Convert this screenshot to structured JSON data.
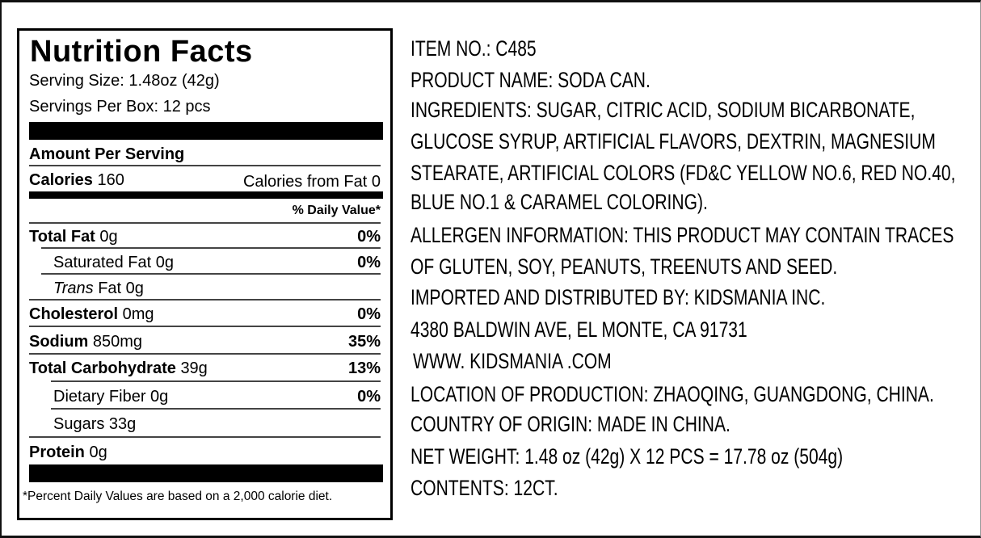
{
  "nutrition": {
    "title": "Nutrition Facts",
    "serving_size": "Serving Size: 1.48oz (42g)",
    "servings_per_box": "Servings Per Box: 12 pcs",
    "amount_per_serving": "Amount Per Serving",
    "calories_label": "Calories",
    "calories_value": "160",
    "calories_from_fat": "Calories from Fat 0",
    "daily_value_header": "% Daily Value*",
    "rows": [
      {
        "label": "Total Fat",
        "amount": "0g",
        "dv": "0%"
      },
      {
        "label": "Saturated Fat 0g",
        "dv": "0%"
      },
      {
        "label_italic": "Trans",
        "label": "Fat 0g"
      },
      {
        "label": "Cholesterol",
        "amount": "0mg",
        "dv": "0%"
      },
      {
        "label": "Sodium",
        "amount": "850mg",
        "dv": "35%"
      },
      {
        "label": "Total Carbohydrate",
        "amount": "39g",
        "dv": "13%"
      },
      {
        "label": "Dietary Fiber 0g",
        "dv": "0%"
      },
      {
        "label": "Sugars 33g"
      },
      {
        "label": "Protein",
        "amount": "0g"
      }
    ],
    "footnote": "*Percent Daily Values are based on a 2,000 calorie diet."
  },
  "info_lines": [
    "ITEM NO.: C485",
    "PRODUCT NAME: SODA CAN.",
    "INGREDIENTS: SUGAR, CITRIC ACID, SODIUM BICARBONATE,",
    "GLUCOSE SYRUP, ARTIFICIAL FLAVORS, DEXTRIN, MAGNESIUM",
    "STEARATE, ARTIFICIAL COLORS (FD&C YELLOW NO.6, RED NO.40,",
    "BLUE NO.1 & CARAMEL COLORING).",
    "ALLERGEN INFORMATION: THIS PRODUCT MAY CONTAIN TRACES",
    "OF GLUTEN, SOY, PEANUTS, TREENUTS AND SEED.",
    "IMPORTED AND DISTRIBUTED BY: KIDSMANIA INC.",
    "4380 BALDWIN AVE, EL MONTE, CA 91731",
    "WWW. KIDSMANIA .COM",
    "LOCATION OF PRODUCTION: ZHAOQING, GUANGDONG, CHINA.",
    "COUNTRY OF ORIGIN: MADE IN CHINA.",
    "NET WEIGHT: 1.48 oz (42g) X 12 PCS = 17.78 oz (504g)",
    "CONTENTS: 12CT."
  ]
}
